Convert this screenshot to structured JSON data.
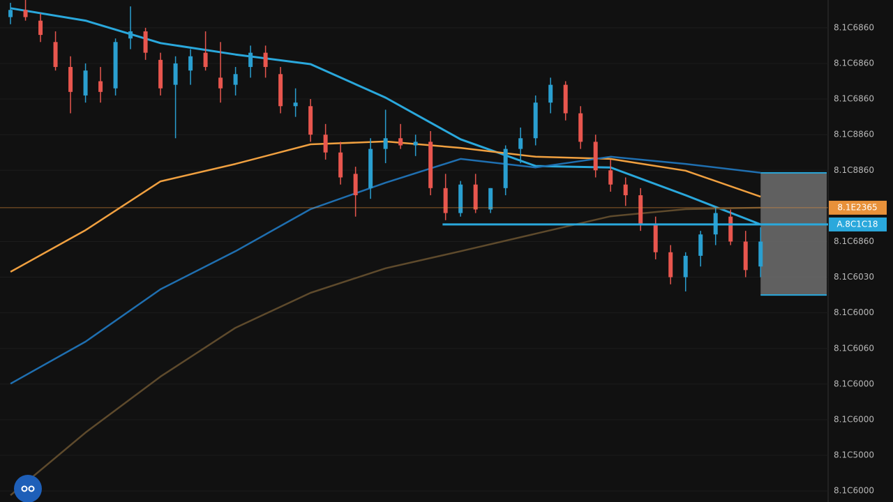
{
  "chart_data": {
    "type": "candlestick",
    "up_color": "#2a9fd0",
    "down_color": "#e8564e",
    "xlim": [
      -0.7,
      54.5
    ],
    "ylim": [
      -0.31,
      13.78
    ],
    "grid": true,
    "yticks": [
      {
        "value": 13,
        "label": "8.1C6860"
      },
      {
        "value": 12,
        "label": "8.1C6860"
      },
      {
        "value": 11,
        "label": "8.1C6860"
      },
      {
        "value": 10,
        "label": "8.1C8860"
      },
      {
        "value": 9,
        "label": "8.1C8860"
      },
      {
        "value": 7,
        "label": "8.1C6860"
      },
      {
        "value": 6,
        "label": "8.1C6030"
      },
      {
        "value": 5,
        "label": "8.1C6000"
      },
      {
        "value": 4,
        "label": "8.1C6060"
      },
      {
        "value": 3,
        "label": "8.1C6000"
      },
      {
        "value": 2,
        "label": "8.1C6000"
      },
      {
        "value": 1,
        "label": "8.1C5000"
      },
      {
        "value": 0,
        "label": "8.1C6000"
      }
    ],
    "candles": {
      "open": [
        13.3,
        13.5,
        13.2,
        12.6,
        11.9,
        11.1,
        11.5,
        11.3,
        12.7,
        12.9,
        12.1,
        11.4,
        11.8,
        12.3,
        11.6,
        11.4,
        11.9,
        12.3,
        11.7,
        10.8,
        10.8,
        10.0,
        9.5,
        8.9,
        8.5,
        9.6,
        9.9,
        9.7,
        9.8,
        8.5,
        7.8,
        8.6,
        7.9,
        8.5,
        9.6,
        9.9,
        10.9,
        11.4,
        10.6,
        9.8,
        9.0,
        8.6,
        8.3,
        7.5,
        6.7,
        6.0,
        6.6,
        7.2,
        7.7,
        7.0,
        6.3
      ],
      "high": [
        13.7,
        13.8,
        13.4,
        12.9,
        12.2,
        12.0,
        11.9,
        12.7,
        13.6,
        13.0,
        12.3,
        12.2,
        12.4,
        12.9,
        12.6,
        11.9,
        12.5,
        12.5,
        11.9,
        11.3,
        11.0,
        10.3,
        9.8,
        9.1,
        9.9,
        10.7,
        10.3,
        10.0,
        10.1,
        8.9,
        8.7,
        8.9,
        8.5,
        9.7,
        10.2,
        11.1,
        11.6,
        11.5,
        10.8,
        10.0,
        9.3,
        8.8,
        8.5,
        7.7,
        6.9,
        6.7,
        7.3,
        8.0,
        7.9,
        7.3,
        7.4
      ],
      "low": [
        13.1,
        13.2,
        12.6,
        11.8,
        10.6,
        10.9,
        10.9,
        11.1,
        12.4,
        12.1,
        11.1,
        9.9,
        11.4,
        11.8,
        10.9,
        11.1,
        11.6,
        11.6,
        10.6,
        10.5,
        9.8,
        9.3,
        8.6,
        7.7,
        8.2,
        9.2,
        9.6,
        9.4,
        8.3,
        7.6,
        7.7,
        7.8,
        7.8,
        8.3,
        9.2,
        9.7,
        10.6,
        10.4,
        9.6,
        8.8,
        8.4,
        8.0,
        7.3,
        6.5,
        5.8,
        5.6,
        6.3,
        6.9,
        6.9,
        6.0,
        6.0
      ],
      "close": [
        13.5,
        13.3,
        12.8,
        11.9,
        11.2,
        11.8,
        11.2,
        12.6,
        12.9,
        12.3,
        11.3,
        12.0,
        12.2,
        11.9,
        11.3,
        11.7,
        12.3,
        11.9,
        10.8,
        10.9,
        10.0,
        9.5,
        8.8,
        8.3,
        9.6,
        9.9,
        9.7,
        9.8,
        8.5,
        7.8,
        8.6,
        7.9,
        8.5,
        9.6,
        9.9,
        10.9,
        11.4,
        10.6,
        9.8,
        9.0,
        8.6,
        8.3,
        7.5,
        6.7,
        6.0,
        6.6,
        7.2,
        7.8,
        7.0,
        6.2,
        7.0
      ]
    },
    "line_x": [
      0,
      5,
      10,
      15,
      20,
      25,
      30,
      35,
      40,
      45,
      50
    ],
    "lines": [
      {
        "color": "#2aa8dc",
        "values": [
          13.55,
          13.2,
          12.57,
          12.25,
          11.98,
          11.04,
          9.87,
          9.12,
          9.08,
          8.3,
          7.48
        ]
      },
      {
        "color": "#f0a040",
        "values": [
          6.15,
          7.32,
          8.69,
          9.18,
          9.73,
          9.81,
          9.63,
          9.38,
          9.32,
          8.99,
          8.26
        ]
      },
      {
        "color": "#1f6fb0",
        "values": [
          3.01,
          4.19,
          5.66,
          6.73,
          7.91,
          8.65,
          9.32,
          9.08,
          9.38,
          9.18,
          8.93
        ]
      },
      {
        "color": "#5e4a2c",
        "values": [
          -0.12,
          1.64,
          3.21,
          4.58,
          5.56,
          6.25,
          6.73,
          7.22,
          7.71,
          7.91,
          7.95
        ]
      }
    ],
    "price_lines": [
      {
        "value": 7.95,
        "label": "8.1E2365",
        "color": "#e8913a"
      },
      {
        "value": 7.48,
        "label": "A.8C1C18",
        "color": "#2aa8dc",
        "from_x": 28.8
      }
    ],
    "position_box": {
      "top": 8.93,
      "bottom": 5.5,
      "from_x": 50
    }
  }
}
